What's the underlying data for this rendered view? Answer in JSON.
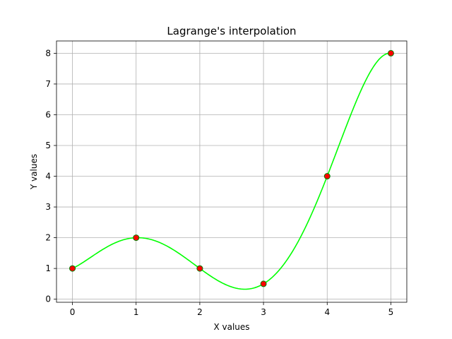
{
  "chart_data": {
    "type": "line",
    "title": "Lagrange's interpolation",
    "xlabel": "X values",
    "ylabel": "Y values",
    "xlim": [
      -0.25,
      5.25
    ],
    "ylim": [
      -0.1,
      8.4
    ],
    "xticks": [
      0,
      1,
      2,
      3,
      4,
      5
    ],
    "yticks": [
      0,
      1,
      2,
      3,
      4,
      5,
      6,
      7,
      8
    ],
    "grid": true,
    "points": {
      "x": [
        0,
        1,
        2,
        3,
        4,
        5
      ],
      "y": [
        1,
        2,
        1,
        0.5,
        4,
        8
      ],
      "color": "#ff0000",
      "edge_color": "#008000"
    },
    "curve": {
      "color": "#00ff00",
      "method": "lagrange",
      "x_range": [
        0,
        5
      ]
    }
  }
}
